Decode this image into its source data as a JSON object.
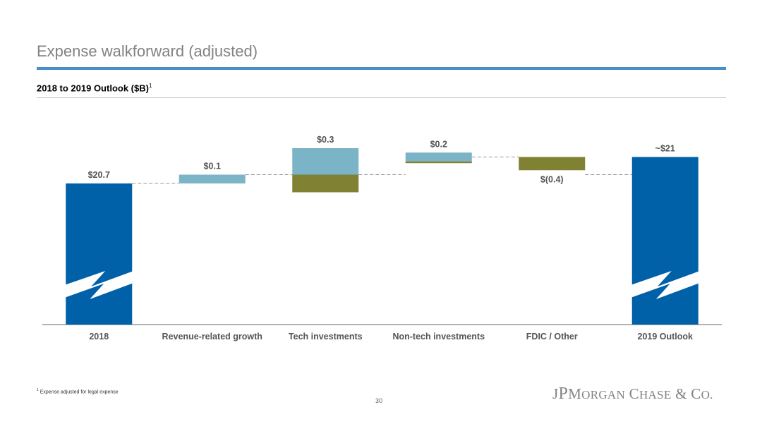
{
  "header": {
    "title": "Expense walkforward (adjusted)",
    "subtitle": "2018 to 2019 Outlook ($B)",
    "subtitle_footnote_marker": "1"
  },
  "footer": {
    "footnote_marker": "1",
    "footnote_text": "Expense adjusted for legal expense",
    "page_number": "30",
    "logo_text": "JPMORGAN CHASE & CO."
  },
  "colors": {
    "total_bar": "#0060a8",
    "increase": "#7bb4c7",
    "decrease": "#818133",
    "connector": "#999999",
    "axis": "#999999",
    "label": "#555555"
  },
  "chart_data": {
    "type": "bar",
    "subtype": "waterfall",
    "title": "2018 to 2019 Outlook ($B)",
    "categories": [
      "2018",
      "Revenue-related growth",
      "Tech investments",
      "Non-tech investments",
      "FDIC / Other",
      "2019 Outlook"
    ],
    "value_labels": [
      "$20.7",
      "$0.1",
      "$0.3",
      "$0.2",
      "$(0.4)",
      "~$21"
    ],
    "net_values": [
      20.7,
      0.1,
      0.3,
      0.2,
      -0.4,
      21.0
    ],
    "bar_kind": [
      "total",
      "delta",
      "delta",
      "delta",
      "delta",
      "total"
    ],
    "segments": [
      [
        {
          "from": 0,
          "to": 20.7,
          "kind": "total"
        }
      ],
      [
        {
          "from": 20.7,
          "to": 20.8,
          "kind": "increase"
        }
      ],
      [
        {
          "from": 20.8,
          "to": 21.1,
          "kind": "increase"
        },
        {
          "from": 20.8,
          "to": 20.6,
          "kind": "decrease"
        }
      ],
      [
        {
          "from": 20.95,
          "to": 21.05,
          "kind": "increase"
        },
        {
          "from": 20.95,
          "to": 20.93,
          "kind": "decrease"
        }
      ],
      [
        {
          "from": 21.0,
          "to": 20.85,
          "kind": "decrease"
        }
      ],
      [
        {
          "from": 0,
          "to": 21.0,
          "kind": "total"
        }
      ]
    ],
    "connectors": [
      20.7,
      20.8,
      20.8,
      21.0,
      20.8
    ],
    "axis_break": true,
    "ylim": [
      19.1,
      21.5
    ],
    "xlabel": "",
    "ylabel": "",
    "grid": false,
    "legend": "none"
  }
}
